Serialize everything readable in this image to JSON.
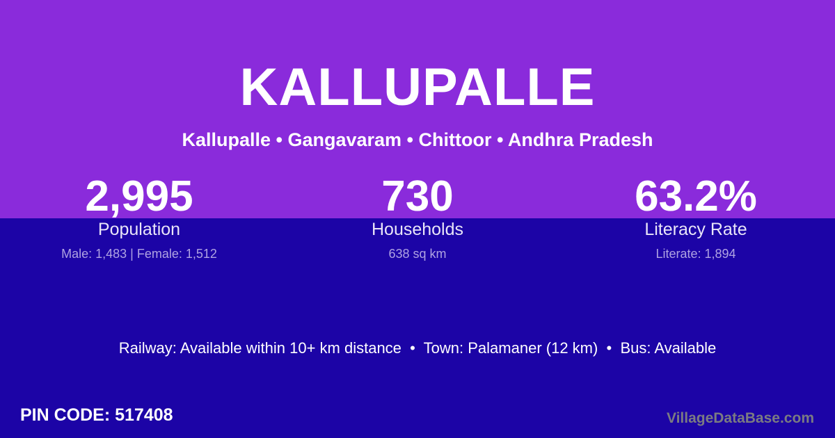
{
  "header": {
    "title": "KALLUPALLE",
    "breadcrumb": "Kallupalle • Gangavaram • Chittoor • Andhra Pradesh"
  },
  "stats": [
    {
      "value": "2,995",
      "label": "Population",
      "detail": "Male: 1,483 | Female: 1,512"
    },
    {
      "value": "730",
      "label": "Households",
      "detail": "638 sq km"
    },
    {
      "value": "63.2%",
      "label": "Literacy Rate",
      "detail": "Literate: 1,894"
    }
  ],
  "transport": {
    "line": "Railway: Available within 10+ km distance  •  Town: Palamaner (12 km)  •  Bus: Available"
  },
  "footer": {
    "pin_code": "PIN CODE: 517408",
    "watermark": "VillageDataBase.com"
  },
  "colors": {
    "top_bg": "#8A2BDB",
    "bottom_bg": "#1C04A6",
    "text_white": "#FFFFFF",
    "label_color": "#E9E5F8",
    "detail_color": "#AFA3E2",
    "watermark_color": "#7B7B82"
  }
}
